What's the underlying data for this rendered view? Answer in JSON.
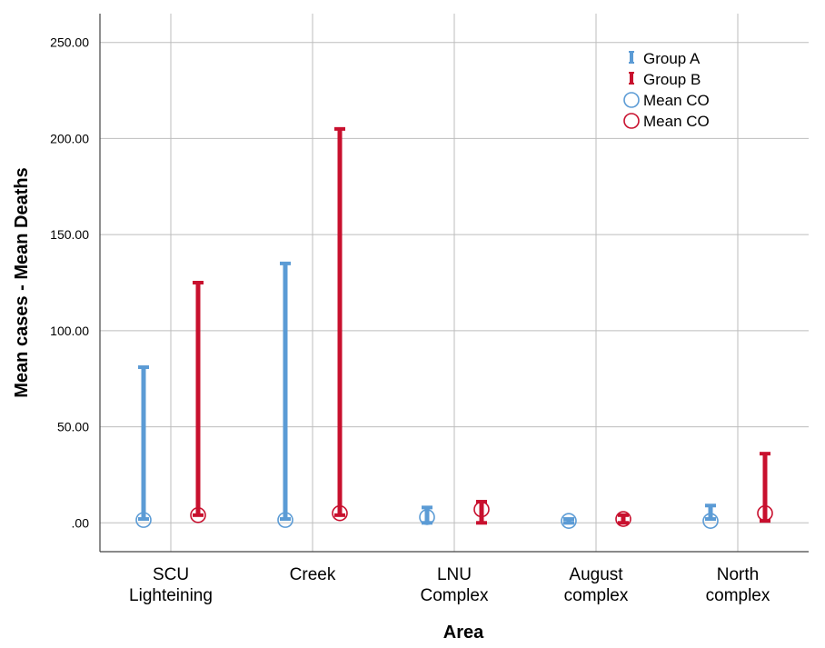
{
  "chart_data": {
    "type": "errorbar",
    "xlabel": "Area",
    "ylabel": "Mean cases - Mean Deaths",
    "ylim": [
      -15,
      265
    ],
    "yticks": [
      {
        "value": 0,
        "label": ".00"
      },
      {
        "value": 50,
        "label": "50.00"
      },
      {
        "value": 100,
        "label": "100.00"
      },
      {
        "value": 150,
        "label": "150.00"
      },
      {
        "value": 200,
        "label": "200.00"
      },
      {
        "value": 250,
        "label": "250.00"
      }
    ],
    "categories": [
      [
        "SCU",
        "Lighteining"
      ],
      [
        "Creek"
      ],
      [
        "LNU",
        "Complex"
      ],
      [
        "August",
        "complex"
      ],
      [
        "North",
        "complex"
      ]
    ],
    "grid": true,
    "legend_position": "top-right",
    "series": [
      {
        "name": "Group A",
        "marker_name": "Mean CO",
        "color": "#5b9bd5",
        "means": [
          1.5,
          1.5,
          3,
          1,
          1
        ],
        "low": [
          2,
          2,
          0,
          0,
          2
        ],
        "high": [
          81,
          135,
          8,
          2,
          9
        ]
      },
      {
        "name": "Group B",
        "marker_name": "Mean CO",
        "color": "#c8102e",
        "means": [
          4,
          5,
          7,
          2,
          5
        ],
        "low": [
          4,
          4,
          0,
          0,
          1
        ],
        "high": [
          125,
          205,
          11,
          4,
          36
        ]
      }
    ]
  }
}
